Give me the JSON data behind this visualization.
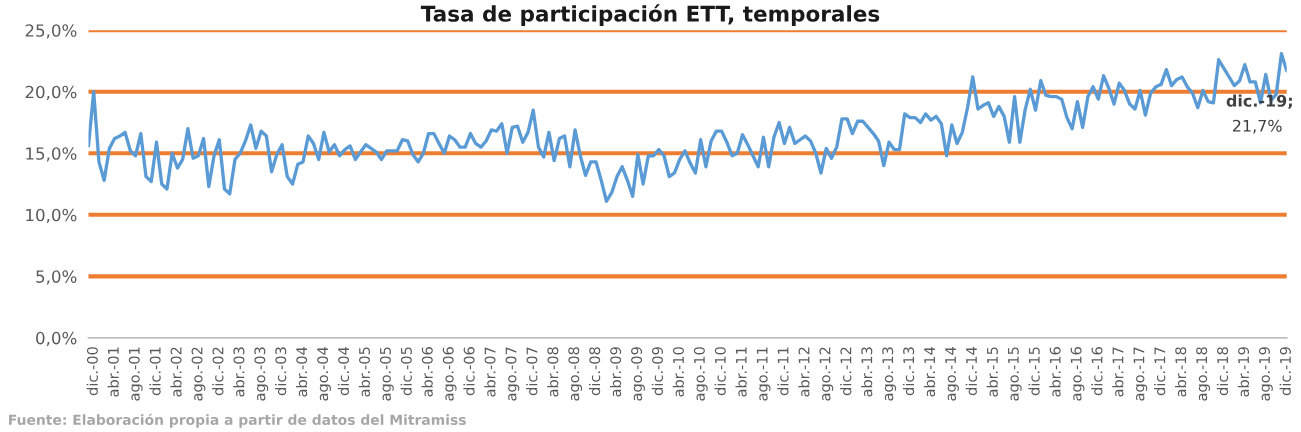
{
  "chart_data": {
    "type": "line",
    "title": "Tasa de participación ETT, temporales",
    "categories": [
      null,
      "dic.-00",
      null,
      null,
      null,
      "abr.-01",
      null,
      null,
      null,
      "ago.-01",
      null,
      null,
      null,
      "dic.-01",
      null,
      null,
      null,
      "abr.-02",
      null,
      null,
      null,
      "ago.-02",
      null,
      null,
      null,
      "dic.-02",
      null,
      null,
      null,
      "abr.-03",
      null,
      null,
      null,
      "ago.-03",
      null,
      null,
      null,
      "dic.-03",
      null,
      null,
      null,
      "abr.-04",
      null,
      null,
      null,
      "ago.-04",
      null,
      null,
      null,
      "dic.-04",
      null,
      null,
      null,
      "abr.-05",
      null,
      null,
      null,
      "ago.-05",
      null,
      null,
      null,
      "dic.-05",
      null,
      null,
      null,
      "abr.-06",
      null,
      null,
      null,
      "ago.-06",
      null,
      null,
      null,
      "dic.-06",
      null,
      null,
      null,
      "abr.-07",
      null,
      null,
      null,
      "ago.-07",
      null,
      null,
      null,
      "dic.-07",
      null,
      null,
      null,
      "abr.-08",
      null,
      null,
      null,
      "ago.-08",
      null,
      null,
      null,
      "dic.-08",
      null,
      null,
      null,
      "abr.-09",
      null,
      null,
      null,
      "ago.-09",
      null,
      null,
      null,
      "dic.-09",
      null,
      null,
      null,
      "abr.-10",
      null,
      null,
      null,
      "ago.-10",
      null,
      null,
      null,
      "dic.-10",
      null,
      null,
      null,
      "abr.-11",
      null,
      null,
      null,
      "ago.-11",
      null,
      null,
      null,
      "dic.-11",
      null,
      null,
      null,
      "abr.-12",
      null,
      null,
      null,
      "ago.-12",
      null,
      null,
      null,
      "dic.-12",
      null,
      null,
      null,
      "abr.-13",
      null,
      null,
      null,
      "ago.-13",
      null,
      null,
      null,
      "dic.-13",
      null,
      null,
      null,
      "abr.-14",
      null,
      null,
      null,
      "ago.-14",
      null,
      null,
      null,
      "dic.-14",
      null,
      null,
      null,
      "abr.-15",
      null,
      null,
      null,
      "ago.-15",
      null,
      null,
      null,
      "dic.-15",
      null,
      null,
      null,
      "abr.-16",
      null,
      null,
      null,
      "ago.-16",
      null,
      null,
      null,
      "dic.-16",
      null,
      null,
      null,
      "abr.-17",
      null,
      null,
      null,
      "ago.-17",
      null,
      null,
      null,
      "dic.-17",
      null,
      null,
      null,
      "abr.-18",
      null,
      null,
      null,
      "ago.-18",
      null,
      null,
      null,
      "dic.-18",
      null,
      null,
      null,
      "abr.-19",
      null,
      null,
      null,
      "ago.-19",
      null,
      null,
      null,
      "dic.-19"
    ],
    "values": [
      15.6,
      20.0,
      14.3,
      12.8,
      15.4,
      16.2,
      16.4,
      16.7,
      15.2,
      14.8,
      16.6,
      13.1,
      12.7,
      15.9,
      12.5,
      12.1,
      15.0,
      13.8,
      14.5,
      17.0,
      14.6,
      14.8,
      16.2,
      12.3,
      14.8,
      16.1,
      12.1,
      11.7,
      14.5,
      15.0,
      16.0,
      17.3,
      15.4,
      16.8,
      16.4,
      13.5,
      14.9,
      15.7,
      13.1,
      12.5,
      14.1,
      14.3,
      16.4,
      15.8,
      14.5,
      16.7,
      15.1,
      15.7,
      14.8,
      15.3,
      15.6,
      14.5,
      15.1,
      15.7,
      15.4,
      15.1,
      14.5,
      15.2,
      15.2,
      15.2,
      16.1,
      16.0,
      14.9,
      14.3,
      15.0,
      16.6,
      16.6,
      15.8,
      15.0,
      16.4,
      16.1,
      15.5,
      15.5,
      16.6,
      15.8,
      15.5,
      16.0,
      16.9,
      16.8,
      17.4,
      15.0,
      17.1,
      17.2,
      15.9,
      16.7,
      18.5,
      15.5,
      14.7,
      16.7,
      14.4,
      16.2,
      16.4,
      13.9,
      16.9,
      14.8,
      13.2,
      14.3,
      14.3,
      12.8,
      11.1,
      11.8,
      13.1,
      13.9,
      12.8,
      11.5,
      14.9,
      12.5,
      14.8,
      14.8,
      15.3,
      14.8,
      13.1,
      13.4,
      14.5,
      15.2,
      14.2,
      13.4,
      16.1,
      13.9,
      16.0,
      16.8,
      16.8,
      15.9,
      14.8,
      15.0,
      16.5,
      15.7,
      14.8,
      13.9,
      16.3,
      13.9,
      16.3,
      17.5,
      15.8,
      17.1,
      15.8,
      16.1,
      16.4,
      16.0,
      15.0,
      13.4,
      15.4,
      14.6,
      15.5,
      17.8,
      17.8,
      16.6,
      17.6,
      17.6,
      17.1,
      16.6,
      16.0,
      14.0,
      15.9,
      15.3,
      15.3,
      18.2,
      17.9,
      17.9,
      17.5,
      18.2,
      17.7,
      18.0,
      17.4,
      14.8,
      17.3,
      15.8,
      16.7,
      18.7,
      21.2,
      18.6,
      18.9,
      19.1,
      18.0,
      18.8,
      18.0,
      15.9,
      19.6,
      15.9,
      18.5,
      20.2,
      18.5,
      20.9,
      19.7,
      19.6,
      19.6,
      19.4,
      17.9,
      17.0,
      19.2,
      17.1,
      19.6,
      20.4,
      19.4,
      21.3,
      20.3,
      19.0,
      20.7,
      20.1,
      19.0,
      18.6,
      20.1,
      18.1,
      19.9,
      20.4,
      20.6,
      21.8,
      20.5,
      21.0,
      21.2,
      20.4,
      19.9,
      18.7,
      20.1,
      19.2,
      19.1,
      22.6,
      21.9,
      21.2,
      20.5,
      20.9,
      22.2,
      20.8,
      20.8,
      19.1,
      21.4,
      19.3,
      19.8,
      23.1,
      21.7
    ],
    "value_labels": [
      null,
      null,
      null,
      null,
      null,
      null,
      null,
      null,
      null,
      null,
      null,
      null,
      null,
      null,
      null,
      null,
      null,
      null,
      null,
      null,
      null,
      null,
      null,
      null,
      null,
      null,
      null,
      null,
      null,
      null,
      null,
      null,
      null,
      null,
      null,
      null,
      null,
      null,
      null,
      null,
      null,
      null,
      null,
      null,
      null,
      null,
      null,
      null,
      null,
      null,
      null,
      null,
      null,
      null,
      null,
      null,
      null,
      null,
      null,
      null,
      null,
      null,
      null,
      null,
      null,
      null,
      null,
      null,
      null,
      null,
      null,
      null,
      null,
      null,
      null,
      null,
      null,
      null,
      null,
      null,
      null,
      null,
      null,
      null,
      null,
      null,
      null,
      null,
      null,
      null,
      null,
      null,
      null,
      null,
      null,
      null,
      null,
      null,
      null,
      null,
      null,
      null,
      null,
      null,
      null,
      null,
      null,
      null,
      null,
      null,
      null,
      null,
      null,
      null,
      null,
      null,
      null,
      null,
      null,
      null,
      null,
      null,
      null,
      null,
      null,
      null,
      null,
      null,
      null,
      null,
      null,
      null,
      null,
      null,
      null,
      null,
      null,
      null,
      null,
      null,
      null,
      null,
      null,
      null,
      null,
      null,
      null,
      null,
      null,
      null,
      null,
      null,
      null,
      null,
      null,
      null,
      null,
      null,
      null,
      null,
      null,
      null,
      null,
      null,
      null,
      null,
      null,
      null,
      null,
      null,
      null,
      null,
      null,
      null,
      null,
      null,
      null,
      null,
      null,
      null,
      null,
      null,
      null,
      null,
      null,
      null,
      null,
      null,
      null,
      null,
      null,
      null,
      null,
      null,
      null,
      null,
      null,
      null,
      null,
      null,
      null,
      null,
      null,
      null,
      null,
      null,
      null,
      null,
      null,
      null,
      null,
      null,
      null,
      null,
      null,
      null,
      null,
      null,
      null,
      null,
      null,
      null,
      null,
      null,
      null,
      null,
      null,
      null,
      null,
      "dic.-19; 21,7%"
    ],
    "color": "#5b9bd5",
    "ylim": [
      0,
      25
    ],
    "yticks": [
      {
        "value": 0,
        "label": "0,0%"
      },
      {
        "value": 5,
        "label": "5,0%"
      },
      {
        "value": 10,
        "label": "10,0%"
      },
      {
        "value": 15,
        "label": "15,0%"
      },
      {
        "value": 20,
        "label": "20,0%"
      },
      {
        "value": 25,
        "label": "25,0%"
      }
    ],
    "grid": "y",
    "annotations": [
      "Fuente: Elaboración propia a partir de datos del Mitramiss"
    ]
  }
}
